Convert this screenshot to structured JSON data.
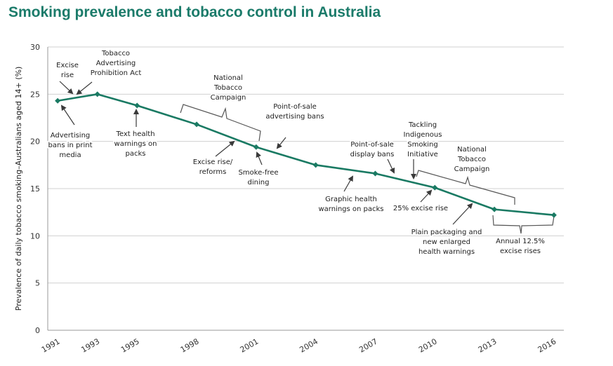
{
  "title": "Smoking prevalence and tobacco control in Australia",
  "chart_data": {
    "type": "line",
    "title": "Smoking prevalence and tobacco control in Australia",
    "xlabel": "",
    "ylabel": "Prevalence of daily tobacco smoking–Australians aged 14+ (%)",
    "x": [
      1991,
      1993,
      1995,
      1998,
      2001,
      2004,
      2007,
      2010,
      2013,
      2016
    ],
    "series": [
      {
        "name": "Daily smoking prevalence",
        "values": [
          24.3,
          25.0,
          23.8,
          21.8,
          19.4,
          17.5,
          16.6,
          15.1,
          12.8,
          12.2
        ]
      }
    ],
    "xlim": [
      1990.5,
      2016.5
    ],
    "ylim": [
      0,
      30
    ],
    "yticks": [
      0,
      5,
      10,
      15,
      20,
      25,
      30
    ],
    "xtick_labels": [
      "1991",
      "1993",
      "1995",
      "1998",
      "2001",
      "2004",
      "2007",
      "2010",
      "2013",
      "2016"
    ],
    "grid": true,
    "line_color": "#1a7a63",
    "annotations": [
      {
        "lines": [
          "Excise",
          "rise"
        ]
      },
      {
        "lines": [
          "Tobacco",
          "Advertising",
          "Prohibition Act"
        ]
      },
      {
        "lines": [
          "Advertising",
          "bans in print",
          "media"
        ]
      },
      {
        "lines": [
          "Text health",
          "warnings on",
          "packs"
        ]
      },
      {
        "lines": [
          "National",
          "Tobacco",
          "Campaign"
        ]
      },
      {
        "lines": [
          "Point-of-sale",
          "advertising bans"
        ]
      },
      {
        "lines": [
          "Excise rise/",
          "reforms"
        ]
      },
      {
        "lines": [
          "Smoke-free",
          "dining"
        ]
      },
      {
        "lines": [
          "Graphic health",
          "warnings on packs"
        ]
      },
      {
        "lines": [
          "Point-of-sale",
          "display bans"
        ]
      },
      {
        "lines": [
          "Tackling",
          "Indigenous",
          "Smoking",
          "Initiative"
        ]
      },
      {
        "lines": [
          "National",
          "Tobacco",
          "Campaign"
        ]
      },
      {
        "lines": [
          "25% excise rise"
        ]
      },
      {
        "lines": [
          "Plain packaging and",
          "new enlarged",
          "health warnings"
        ]
      },
      {
        "lines": [
          "Annual 12.5%",
          "excise rises"
        ]
      }
    ]
  }
}
